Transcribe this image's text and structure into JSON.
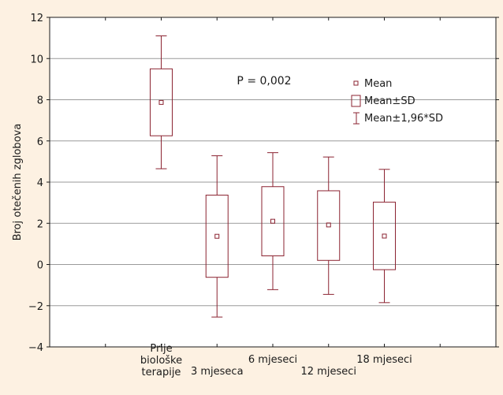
{
  "chart_data": {
    "type": "box",
    "ylabel": "Broj otečenih zglobova",
    "ylim": [
      -4,
      12
    ],
    "yticks": [
      -4,
      -2,
      0,
      2,
      4,
      6,
      8,
      10,
      12
    ],
    "ytick_labels": [
      "−4",
      "−2",
      "0",
      "2",
      "4",
      "6",
      "8",
      "10",
      "12"
    ],
    "grid": true,
    "annotation": "P = 0,002",
    "categories": [
      [
        "Prije",
        "biološke",
        "terapije"
      ],
      [
        "3 mjeseca"
      ],
      [
        "6 mjeseci"
      ],
      [
        "12 mjeseci"
      ],
      [
        "18 mjeseci"
      ]
    ],
    "mean": [
      7.87,
      1.37,
      2.1,
      1.92,
      1.38
    ],
    "sd_low": [
      6.25,
      -0.62,
      0.42,
      0.2,
      -0.25
    ],
    "sd_high": [
      9.5,
      3.37,
      3.78,
      3.58,
      3.03
    ],
    "ci_low": [
      4.65,
      -2.55,
      -1.22,
      -1.45,
      -1.85
    ],
    "ci_high": [
      11.1,
      5.28,
      5.43,
      5.22,
      4.62
    ],
    "legend": {
      "placement": "top-right",
      "items": [
        {
          "symbol": "mean",
          "label": "Mean"
        },
        {
          "symbol": "box",
          "label": "Mean±SD"
        },
        {
          "symbol": "whisker",
          "label": "Mean±1,96*SD"
        }
      ]
    },
    "colors": {
      "series": "#8b2331",
      "grid": "#9a9a9a",
      "background": "#fdf1e2",
      "plot": "#ffffff"
    }
  }
}
